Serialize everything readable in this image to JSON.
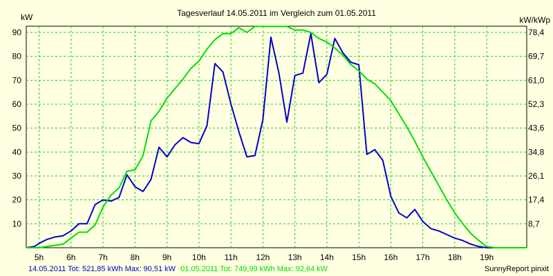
{
  "colors": {
    "background": "#ffffe1",
    "plot_background": "#ffffe1",
    "grid": "#22cc22",
    "series_blue": "#0000cc",
    "series_green": "#00dd00"
  },
  "footer": {
    "series1_label": "14.05.2011 Tot: 521,85 kWh Max: 90,51 kW",
    "series2_label": "01.05.2011 Tot: 749,99 kWh Max: 92,64 kW",
    "credit": "SunnyReport pinxit"
  },
  "chart_data": {
    "type": "line",
    "title": "Tagesverlauf 14.05.2011 im Vergleich zum 01.05.2011",
    "ylabel": "kW",
    "ylabel_right": "kW/kWp",
    "xlim": [
      4.6,
      20.25
    ],
    "ylim": [
      0,
      92.6
    ],
    "x_ticks": [
      5,
      6,
      7,
      8,
      9,
      10,
      11,
      12,
      13,
      14,
      15,
      16,
      17,
      18,
      19
    ],
    "x_tick_labels": [
      "5h",
      "6h",
      "7h",
      "8h",
      "9h",
      "10h",
      "11h",
      "12h",
      "13h",
      "14h",
      "15h",
      "16h",
      "17h",
      "18h",
      "19h"
    ],
    "y_ticks": [
      10,
      20,
      30,
      40,
      50,
      60,
      70,
      80,
      90
    ],
    "y_tick_labels": [
      "10",
      "20",
      "30",
      "40",
      "50",
      "60",
      "70",
      "80",
      "90"
    ],
    "y2_tick_labels": [
      "8,7",
      "17,4",
      "26,1",
      "34,8",
      "43,6",
      "52,3",
      "61,0",
      "69,7",
      "78,4"
    ],
    "grid": true,
    "series": [
      {
        "name": "14.05.2011",
        "color": "#0000cc",
        "x": [
          4.6,
          4.85,
          5.0,
          5.25,
          5.5,
          5.75,
          6.0,
          6.25,
          6.5,
          6.75,
          7.0,
          7.25,
          7.5,
          7.75,
          8.0,
          8.25,
          8.5,
          8.75,
          9.0,
          9.25,
          9.5,
          9.75,
          10.0,
          10.25,
          10.5,
          10.75,
          11.0,
          11.25,
          11.5,
          11.75,
          12.0,
          12.25,
          12.5,
          12.75,
          13.0,
          13.25,
          13.5,
          13.75,
          14.0,
          14.25,
          14.5,
          14.75,
          15.0,
          15.25,
          15.5,
          15.75,
          16.0,
          16.25,
          16.5,
          16.75,
          17.0,
          17.25,
          17.5,
          17.75,
          18.0,
          18.25,
          18.5,
          18.75,
          19.0,
          19.25,
          19.5
        ],
        "values": [
          0,
          0.5,
          1.8,
          3.5,
          4.5,
          5,
          7,
          10,
          10,
          18,
          20,
          19.5,
          21,
          30.5,
          25.5,
          23.5,
          28.5,
          42,
          38,
          43,
          46,
          44,
          43.5,
          51,
          77,
          73.5,
          60,
          48.5,
          38,
          38.5,
          53.5,
          88,
          73,
          52.5,
          72,
          73,
          89.5,
          69,
          72.5,
          87.5,
          81.5,
          77.5,
          76.5,
          39,
          41,
          36.5,
          21.5,
          14.5,
          12.5,
          16,
          11,
          8,
          7,
          5.5,
          4,
          3,
          1.5,
          0.5,
          0,
          0,
          0
        ]
      },
      {
        "name": "01.05.2011",
        "color": "#00dd00",
        "x": [
          4.6,
          5.0,
          5.25,
          5.5,
          5.75,
          6.0,
          6.25,
          6.5,
          6.75,
          7.0,
          7.25,
          7.5,
          7.75,
          8.0,
          8.25,
          8.5,
          8.75,
          9.0,
          9.25,
          9.5,
          9.75,
          10.0,
          10.25,
          10.5,
          10.75,
          11.0,
          11.25,
          11.5,
          11.75,
          12.0,
          12.25,
          12.5,
          12.75,
          13.0,
          13.25,
          13.5,
          13.75,
          14.0,
          14.25,
          14.5,
          14.75,
          15.0,
          15.25,
          15.5,
          15.75,
          16.0,
          16.25,
          16.5,
          16.75,
          17.0,
          17.25,
          17.5,
          17.75,
          18.0,
          18.25,
          18.5,
          18.75,
          19.0,
          19.25,
          19.5,
          19.75,
          20.0,
          20.25
        ],
        "values": [
          0,
          0,
          0.5,
          1,
          1.5,
          4,
          6.5,
          6.5,
          9.5,
          17,
          22,
          25,
          32,
          32.5,
          38.5,
          53,
          57,
          62.5,
          66.5,
          70.5,
          75,
          78,
          83,
          87,
          89.5,
          89.5,
          92,
          90,
          92.5,
          92.5,
          92.5,
          92.5,
          92.5,
          91,
          91,
          90,
          87.5,
          86,
          83.5,
          80.5,
          76.5,
          74,
          70.5,
          68.5,
          65,
          61.5,
          56,
          50.5,
          44.5,
          38,
          32,
          26,
          20,
          14.5,
          10,
          6,
          3,
          0.5,
          0,
          0,
          0,
          0,
          0
        ]
      }
    ]
  }
}
